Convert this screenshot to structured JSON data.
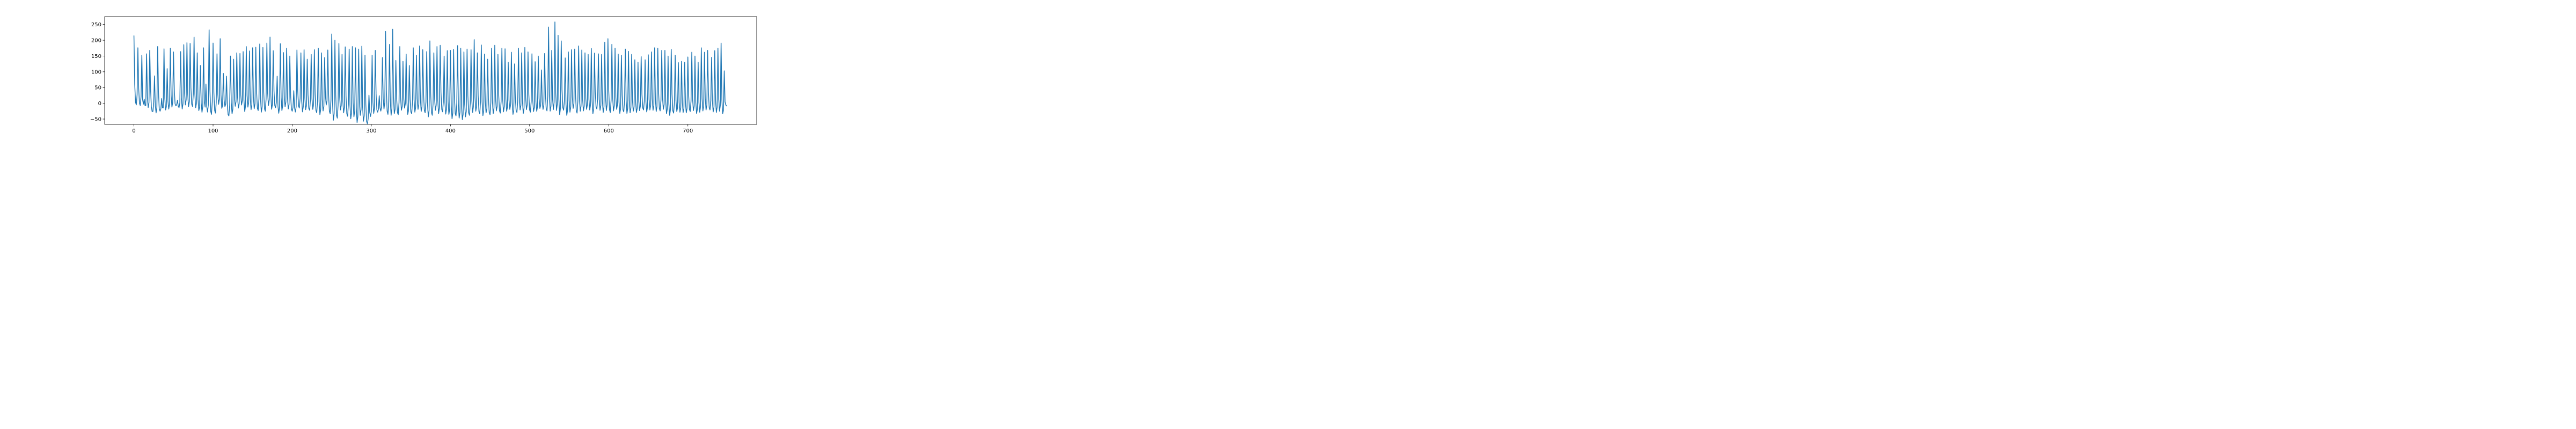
{
  "chart_data": {
    "type": "line",
    "title": "",
    "xlabel": "",
    "ylabel": "",
    "xlim": [
      -37,
      787
    ],
    "ylim": [
      -67,
      275
    ],
    "xticks": [
      0,
      100,
      200,
      300,
      400,
      500,
      600,
      700
    ],
    "yticks": [
      -50,
      0,
      50,
      100,
      150,
      200,
      250
    ],
    "grid": false,
    "legend": "none",
    "series": [
      {
        "color": "#1f77b4",
        "n_points": 750,
        "x_start": 0,
        "x_step": 1,
        "peaks_x": [
          0,
          5,
          10,
          13,
          16,
          20,
          26,
          30,
          35,
          38,
          42,
          46,
          50,
          55,
          59,
          63,
          67,
          71,
          76,
          80,
          84,
          88,
          91,
          95,
          100,
          105,
          109,
          113,
          117,
          122,
          126,
          130,
          134,
          138,
          142,
          146,
          150,
          154,
          159,
          163,
          168,
          172,
          176,
          181,
          185,
          189,
          193,
          197,
          202,
          206,
          211,
          215,
          219,
          224,
          228,
          233,
          237,
          241,
          245,
          250,
          254,
          259,
          263,
          267,
          272,
          276,
          280,
          284,
          288,
          292,
          297,
          301,
          305,
          310,
          314,
          318,
          323,
          327,
          331,
          336,
          340,
          344,
          348,
          353,
          357,
          361,
          365,
          370,
          374,
          379,
          383,
          387,
          392,
          396,
          400,
          404,
          409,
          413,
          417,
          421,
          426,
          430,
          434,
          439,
          443,
          447,
          452,
          456,
          460,
          465,
          469,
          473,
          477,
          481,
          486,
          490,
          494,
          498,
          503,
          507,
          511,
          515,
          519,
          524,
          528,
          532,
          536,
          540,
          545,
          549,
          553,
          557,
          562,
          566,
          570,
          574,
          578,
          582,
          587,
          591,
          595,
          599,
          604,
          608,
          612,
          616,
          621,
          625,
          629,
          633,
          637,
          641,
          646,
          650,
          654,
          658,
          662,
          667,
          671,
          675,
          679,
          684,
          688,
          692,
          696,
          700,
          705,
          709,
          713,
          717,
          721,
          725,
          730,
          734,
          738,
          742,
          746
        ],
        "peaks_y": [
          215,
          176,
          152,
          13,
          157,
          168,
          87,
          180,
          15,
          173,
          110,
          175,
          163,
          10,
          164,
          186,
          192,
          190,
          210,
          160,
          120,
          176,
          61,
          233,
          191,
          157,
          205,
          95,
          86,
          150,
          140,
          160,
          158,
          164,
          180,
          166,
          176,
          178,
          188,
          177,
          191,
          210,
          167,
          86,
          189,
          161,
          175,
          150,
          40,
          169,
          160,
          170,
          140,
          155,
          170,
          175,
          160,
          145,
          169,
          220,
          200,
          190,
          155,
          179,
          172,
          180,
          176,
          172,
          181,
          152,
          26,
          152,
          168,
          24,
          145,
          228,
          187,
          235,
          136,
          180,
          133,
          156,
          120,
          176,
          152,
          182,
          170,
          164,
          198,
          160,
          180,
          184,
          150,
          167,
          168,
          171,
          183,
          175,
          163,
          172,
          170,
          202,
          160,
          185,
          156,
          140,
          175,
          184,
          155,
          175,
          173,
          130,
          162,
          125,
          175,
          160,
          177,
          163,
          157,
          132,
          150,
          106,
          158,
          242,
          168,
          258,
          216,
          198,
          144,
          163,
          170,
          172,
          182,
          169,
          160,
          155,
          174,
          159,
          157,
          155,
          194,
          205,
          187,
          175,
          156,
          152,
          172,
          165,
          155,
          138,
          130,
          148,
          138,
          154,
          163,
          176,
          175,
          168,
          168,
          150,
          171,
          152,
          129,
          133,
          130,
          147,
          162,
          150,
          130,
          176,
          162,
          168,
          146,
          167,
          175,
          191,
          103
        ],
        "troughs_y": [
          -5,
          -7,
          -3,
          -9,
          -14,
          -27,
          -31,
          -25,
          -17,
          -22,
          -19,
          -13,
          -8,
          -14,
          -19,
          -6,
          -12,
          -10,
          -15,
          -24,
          -29,
          -13,
          -28,
          -35,
          -31,
          -4,
          -17,
          -11,
          -40,
          -34,
          -10,
          -16,
          -6,
          -27,
          -13,
          -21,
          -18,
          -23,
          -29,
          -25,
          -8,
          -20,
          -14,
          -32,
          -24,
          -12,
          -19,
          -25,
          -28,
          -15,
          -28,
          -21,
          -22,
          -20,
          -30,
          -37,
          -25,
          -6,
          -33,
          -55,
          -47,
          -22,
          -31,
          -41,
          -50,
          -44,
          -62,
          -39,
          -58,
          -65,
          -42,
          -33,
          -28,
          -25,
          -19,
          -35,
          -39,
          -34,
          -36,
          -23,
          -16,
          -36,
          -33,
          -29,
          -20,
          -27,
          -30,
          -44,
          -38,
          -23,
          -34,
          -27,
          -35,
          -36,
          -50,
          -40,
          -48,
          -53,
          -44,
          -38,
          -30,
          -26,
          -33,
          -40,
          -31,
          -36,
          -34,
          -25,
          -31,
          -28,
          -26,
          -20,
          -36,
          -29,
          -22,
          -33,
          -21,
          -28,
          -27,
          -26,
          -17,
          -20,
          -24,
          -26,
          -21,
          -24,
          -37,
          -22,
          -39,
          -29,
          -17,
          -31,
          -26,
          -25,
          -20,
          -22,
          -34,
          -18,
          -23,
          -30,
          -24,
          -29,
          -25,
          -20,
          -33,
          -27,
          -33,
          -31,
          -26,
          -30,
          -24,
          -21,
          -28,
          -22,
          -23,
          -27,
          -24,
          -20,
          -34,
          -39,
          -31,
          -27,
          -29,
          -30,
          -31,
          -26,
          -24,
          -33,
          -29,
          -25,
          -22,
          -21,
          -28,
          -30,
          -26,
          -34
        ],
        "last_value": -9
      }
    ]
  }
}
